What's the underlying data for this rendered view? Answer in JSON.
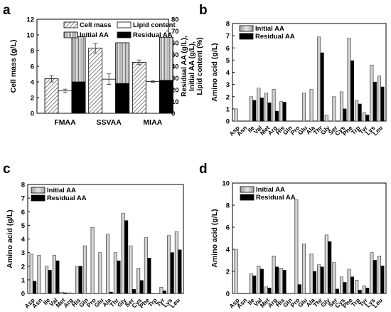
{
  "chart_data": [
    {
      "panel": "a",
      "type": "bar",
      "categories": [
        "FMAA",
        "SSVAA",
        "MIAA"
      ],
      "ylabel_left": "Cell mass (g/L)",
      "ylabel_right": [
        "Residual AA (g/L),",
        "Initial AA (g/L),",
        "Lipid content (%)"
      ],
      "ylim_left": [
        0,
        12
      ],
      "ylim_right": [
        0,
        80
      ],
      "left_ticks": [
        0,
        2,
        4,
        6,
        8,
        10,
        12
      ],
      "right_ticks": [
        0,
        10,
        20,
        30,
        40,
        50,
        60,
        70,
        80
      ],
      "legend": [
        {
          "name": "Cell mass",
          "pattern": "diag"
        },
        {
          "name": "Lipid content",
          "pattern": "white"
        },
        {
          "name": "Initial AA",
          "pattern": "vert"
        },
        {
          "name": "Residual AA",
          "pattern": "black"
        }
      ],
      "series": [
        {
          "name": "Cell mass",
          "axis": "left",
          "values": [
            4.4,
            8.3,
            6.5
          ],
          "errors": [
            0.4,
            0.6,
            0.3
          ]
        },
        {
          "name": "Lipid content",
          "axis": "right",
          "values": [
            19,
            29,
            27
          ],
          "errors": [
            1.5,
            4.5,
            0.7
          ]
        },
        {
          "name": "Initial AA",
          "axis": "left",
          "values": [
            9.8,
            9.0,
            9.7
          ],
          "errors": [
            0,
            0,
            0
          ]
        },
        {
          "name": "Residual AA",
          "axis": "left",
          "values": [
            4.0,
            3.8,
            4.2
          ],
          "errors": [
            0,
            0,
            0
          ]
        }
      ]
    },
    {
      "panel": "b",
      "type": "bar",
      "ylabel": "Amino acid (g/L)",
      "ylim": [
        0,
        8
      ],
      "ticks": [
        0,
        1,
        2,
        3,
        4,
        5,
        6,
        7,
        8
      ],
      "categories": [
        "Asp",
        "Asn",
        "Ile",
        "Val",
        "Met",
        "Arg",
        "His",
        "Gln",
        "Pro",
        "Glu",
        "Ala",
        "Thr",
        "Gly",
        "Ser",
        "Cys",
        "Phe",
        "Trp",
        "Tyr",
        "Lys",
        "Leu"
      ],
      "series": [
        {
          "name": "Initial AA",
          "values": [
            1.0,
            0.0,
            2.0,
            2.7,
            2.3,
            2.6,
            1.6,
            0,
            0,
            2.3,
            2.6,
            6.9,
            0.5,
            2.0,
            2.4,
            6.8,
            1.7,
            0.7,
            4.6,
            3.7
          ]
        },
        {
          "name": "Residual AA",
          "values": [
            0,
            0,
            1.7,
            1.9,
            1.5,
            0.8,
            1.55,
            0,
            0,
            0,
            0,
            5.6,
            0,
            0,
            1.0,
            4.95,
            1.4,
            0.5,
            3.2,
            2.8
          ]
        }
      ]
    },
    {
      "panel": "c",
      "type": "bar",
      "ylabel": "Amino acid (g/L)",
      "ylim": [
        0,
        8
      ],
      "ticks": [
        0,
        1,
        2,
        3,
        4,
        5,
        6,
        7,
        8
      ],
      "categories": [
        "Asp",
        "Asn",
        "Ile",
        "Val",
        "Met",
        "Arg",
        "His",
        "Gln",
        "Pro",
        "Glu",
        "Ala",
        "Thr",
        "Gly",
        "Ser",
        "Cys",
        "Phe",
        "Trp",
        "Tyr",
        "Lys",
        "Leu"
      ],
      "series": [
        {
          "name": "Initial AA",
          "values": [
            2.9,
            2.8,
            2.0,
            2.8,
            0.1,
            0.05,
            2.0,
            3.5,
            4.85,
            3.0,
            4.35,
            3.0,
            5.9,
            3.5,
            1.85,
            4.1,
            0,
            0.45,
            4.25,
            4.55
          ]
        },
        {
          "name": "Residual AA",
          "values": [
            0.9,
            0,
            1.7,
            2.4,
            0.05,
            0,
            2.0,
            0,
            0,
            0,
            0.1,
            2.4,
            5.35,
            0.3,
            0.95,
            2.6,
            0,
            0.2,
            3.0,
            3.2
          ]
        }
      ]
    },
    {
      "panel": "d",
      "type": "bar",
      "ylabel": "Amino acid (g/L)",
      "ylim": [
        0,
        10
      ],
      "ticks": [
        0,
        2,
        4,
        6,
        8,
        10
      ],
      "categories": [
        "Asp",
        "Asn",
        "Ile",
        "Val",
        "Met",
        "Arg",
        "His",
        "Gln",
        "Pro",
        "Glu",
        "Ala",
        "Thr",
        "Gly",
        "Ser",
        "Cys",
        "Phe",
        "Trp",
        "Tyr",
        "Lys",
        "Leu"
      ],
      "series": [
        {
          "name": "Initial AA",
          "values": [
            4.0,
            0,
            1.8,
            2.5,
            0.6,
            3.4,
            2.3,
            0,
            8.5,
            4.5,
            3.6,
            2.6,
            5.3,
            2.8,
            1.5,
            2.2,
            1.2,
            0.7,
            3.7,
            3.4
          ]
        },
        {
          "name": "Residual AA",
          "values": [
            0,
            0,
            1.6,
            2.2,
            0.5,
            2.4,
            2.1,
            0,
            0.8,
            0,
            2.0,
            2.4,
            4.7,
            0.4,
            1.0,
            1.5,
            0.3,
            0.5,
            3.0,
            2.5
          ]
        }
      ]
    }
  ],
  "panel_labels": [
    "a",
    "b",
    "c",
    "d"
  ],
  "legend_text": {
    "initial": "Initial AA",
    "residual": "Residual AA",
    "cell_mass": "Cell mass",
    "lipid": "Lipid content"
  }
}
